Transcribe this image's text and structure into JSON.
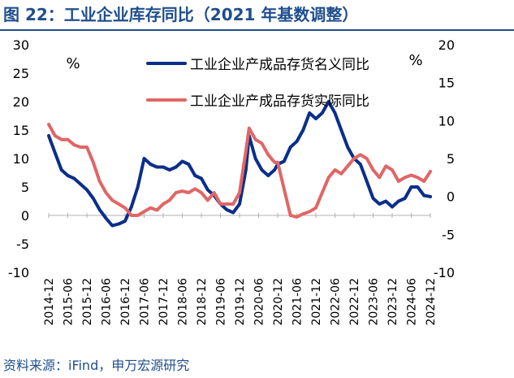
{
  "figure": {
    "title": "图 22：工业企业库存同比（2021 年基数调整）",
    "source": "资料来源：iFind，申万宏源研究"
  },
  "colors": {
    "nominal": "#0a2e8a",
    "real": "#e06666",
    "title": "#1f4e8c"
  },
  "chart_data": {
    "type": "line",
    "left_unit": "%",
    "right_unit": "%",
    "left_axis": {
      "ylim": [
        -10,
        30
      ],
      "ticks": [
        -10,
        -5,
        0,
        5,
        10,
        15,
        20,
        25,
        30
      ]
    },
    "right_axis": {
      "ylim": [
        -10,
        20
      ],
      "ticks": [
        -10,
        -5,
        0,
        5,
        10,
        15,
        20
      ]
    },
    "x_ticks": [
      "2014-12",
      "2015-06",
      "2015-12",
      "2016-06",
      "2016-12",
      "2017-06",
      "2017-12",
      "2018-06",
      "2018-12",
      "2019-06",
      "2019-12",
      "2020-06",
      "2020-12",
      "2021-06",
      "2021-12",
      "2022-06",
      "2022-12",
      "2023-06",
      "2023-12",
      "2024-06",
      "2024-12"
    ],
    "x_start": "2014-12",
    "x_end": "2024-12",
    "series": [
      {
        "name": "工业企业产成品存货名义同比",
        "axis": "left",
        "color": "#0a2e8a",
        "points": [
          [
            "2014-12",
            14.0
          ],
          [
            "2015-02",
            11.0
          ],
          [
            "2015-04",
            8.0
          ],
          [
            "2015-06",
            7.0
          ],
          [
            "2015-08",
            6.5
          ],
          [
            "2015-10",
            5.5
          ],
          [
            "2015-12",
            4.5
          ],
          [
            "2016-02",
            3.0
          ],
          [
            "2016-04",
            1.0
          ],
          [
            "2016-06",
            -0.5
          ],
          [
            "2016-08",
            -1.8
          ],
          [
            "2016-10",
            -1.5
          ],
          [
            "2016-12",
            -1.0
          ],
          [
            "2017-02",
            1.5
          ],
          [
            "2017-04",
            5.0
          ],
          [
            "2017-06",
            10.0
          ],
          [
            "2017-08",
            9.0
          ],
          [
            "2017-10",
            8.5
          ],
          [
            "2017-12",
            8.5
          ],
          [
            "2018-02",
            8.0
          ],
          [
            "2018-04",
            8.5
          ],
          [
            "2018-06",
            9.5
          ],
          [
            "2018-08",
            9.0
          ],
          [
            "2018-10",
            7.0
          ],
          [
            "2018-12",
            6.5
          ],
          [
            "2019-02",
            4.5
          ],
          [
            "2019-04",
            3.5
          ],
          [
            "2019-06",
            2.0
          ],
          [
            "2019-08",
            1.0
          ],
          [
            "2019-10",
            0.5
          ],
          [
            "2019-12",
            2.0
          ],
          [
            "2020-02",
            8.0
          ],
          [
            "2020-03",
            14.0
          ],
          [
            "2020-05",
            10.0
          ],
          [
            "2020-07",
            8.0
          ],
          [
            "2020-09",
            7.0
          ],
          [
            "2020-11",
            8.0
          ],
          [
            "2020-12",
            9.0
          ],
          [
            "2021-02",
            9.5
          ],
          [
            "2021-04",
            12.0
          ],
          [
            "2021-06",
            13.0
          ],
          [
            "2021-08",
            15.0
          ],
          [
            "2021-10",
            18.0
          ],
          [
            "2021-12",
            17.0
          ],
          [
            "2022-02",
            18.0
          ],
          [
            "2022-04",
            20.0
          ],
          [
            "2022-06",
            18.0
          ],
          [
            "2022-08",
            15.0
          ],
          [
            "2022-10",
            12.0
          ],
          [
            "2022-12",
            10.0
          ],
          [
            "2023-02",
            9.0
          ],
          [
            "2023-04",
            6.0
          ],
          [
            "2023-06",
            3.0
          ],
          [
            "2023-08",
            2.0
          ],
          [
            "2023-10",
            2.5
          ],
          [
            "2023-12",
            1.5
          ],
          [
            "2024-02",
            2.5
          ],
          [
            "2024-04",
            3.0
          ],
          [
            "2024-06",
            5.0
          ],
          [
            "2024-08",
            5.0
          ],
          [
            "2024-10",
            3.5
          ],
          [
            "2024-12",
            3.3
          ]
        ]
      },
      {
        "name": "工业企业产成品存货实际同比",
        "axis": "right",
        "color": "#e06666",
        "points": [
          [
            "2014-12",
            9.5
          ],
          [
            "2015-02",
            8.0
          ],
          [
            "2015-04",
            7.5
          ],
          [
            "2015-06",
            7.5
          ],
          [
            "2015-08",
            6.8
          ],
          [
            "2015-10",
            6.5
          ],
          [
            "2015-12",
            6.5
          ],
          [
            "2016-02",
            4.5
          ],
          [
            "2016-04",
            2.0
          ],
          [
            "2016-06",
            0.5
          ],
          [
            "2016-08",
            -0.5
          ],
          [
            "2016-10",
            -1.0
          ],
          [
            "2016-12",
            -1.5
          ],
          [
            "2017-02",
            -2.5
          ],
          [
            "2017-04",
            -2.5
          ],
          [
            "2017-06",
            -2.0
          ],
          [
            "2017-08",
            -1.5
          ],
          [
            "2017-10",
            -1.8
          ],
          [
            "2017-12",
            -1.0
          ],
          [
            "2018-02",
            -0.5
          ],
          [
            "2018-04",
            0.5
          ],
          [
            "2018-06",
            0.7
          ],
          [
            "2018-08",
            0.5
          ],
          [
            "2018-10",
            1.0
          ],
          [
            "2018-12",
            0.5
          ],
          [
            "2019-02",
            -0.5
          ],
          [
            "2019-04",
            0.5
          ],
          [
            "2019-06",
            -1.0
          ],
          [
            "2019-08",
            -1.0
          ],
          [
            "2019-10",
            -1.0
          ],
          [
            "2019-12",
            0.5
          ],
          [
            "2020-02",
            6.0
          ],
          [
            "2020-03",
            9.0
          ],
          [
            "2020-05",
            7.5
          ],
          [
            "2020-07",
            7.0
          ],
          [
            "2020-09",
            5.5
          ],
          [
            "2020-11",
            4.5
          ],
          [
            "2020-12",
            4.5
          ],
          [
            "2021-02",
            1.0
          ],
          [
            "2021-04",
            -2.5
          ],
          [
            "2021-06",
            -2.7
          ],
          [
            "2021-08",
            -2.3
          ],
          [
            "2021-10",
            -2.0
          ],
          [
            "2021-12",
            -1.5
          ],
          [
            "2022-02",
            0.5
          ],
          [
            "2022-04",
            2.5
          ],
          [
            "2022-06",
            3.5
          ],
          [
            "2022-08",
            3.0
          ],
          [
            "2022-10",
            4.0
          ],
          [
            "2022-12",
            5.0
          ],
          [
            "2023-02",
            5.5
          ],
          [
            "2023-04",
            5.0
          ],
          [
            "2023-06",
            3.5
          ],
          [
            "2023-08",
            2.5
          ],
          [
            "2023-10",
            4.0
          ],
          [
            "2023-12",
            3.5
          ],
          [
            "2024-02",
            2.0
          ],
          [
            "2024-04",
            2.5
          ],
          [
            "2024-06",
            2.8
          ],
          [
            "2024-08",
            2.5
          ],
          [
            "2024-10",
            2.0
          ],
          [
            "2024-12",
            3.3
          ]
        ]
      }
    ]
  }
}
